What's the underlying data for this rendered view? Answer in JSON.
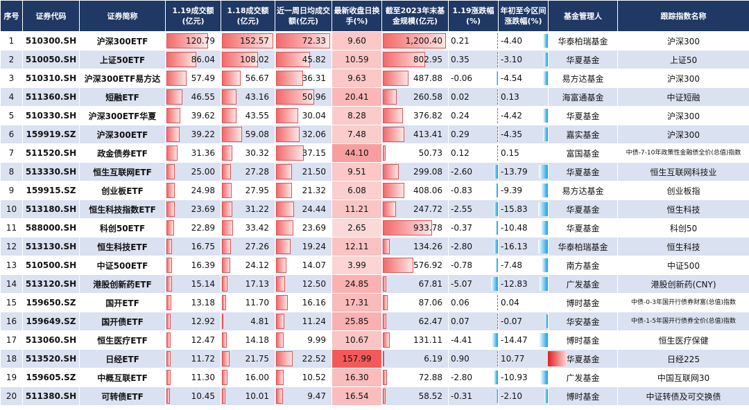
{
  "headers": {
    "idx": "序号",
    "code": "证券代码",
    "name": "证券简称",
    "amt119": "1.19成交额(亿元)",
    "amt118": "1.18成交额(亿元)",
    "avgweek": "近一周日均成交额(亿元)",
    "turnover": "最新收盘日换手(%)",
    "scale": "截至2023年末基金规模(亿元)",
    "chg119": "1.19涨跌幅(%)",
    "ytd": "年初至今区间涨跌幅(%)",
    "manager": "基金管理人",
    "index": "跟踪指数名称"
  },
  "colors": {
    "header_bg": "#1f3864",
    "alt_row": "#dae1f1",
    "bar_red": "#f26a6a",
    "bar_blue": "#27a8e6"
  },
  "rows": [
    {
      "idx": "1",
      "code": "510300.SH",
      "name": "沪深300ETF",
      "amt119": "120.79",
      "amt118": "152.57",
      "avgweek": "72.33",
      "turnover": "9.60",
      "scale": "1,200.40",
      "chg119": "0.21",
      "ytd": "-4.40",
      "manager": "华泰柏瑞基金",
      "index": "沪深300"
    },
    {
      "idx": "2",
      "code": "510050.SH",
      "name": "上证50ETF",
      "amt119": "86.04",
      "amt118": "108.02",
      "avgweek": "45.82",
      "turnover": "10.59",
      "scale": "802.95",
      "chg119": "0.35",
      "ytd": "-3.10",
      "manager": "华夏基金",
      "index": "上证50"
    },
    {
      "idx": "3",
      "code": "510310.SH",
      "name": "沪深300ETF易方达",
      "amt119": "57.49",
      "amt118": "56.67",
      "avgweek": "36.31",
      "turnover": "9.63",
      "scale": "487.88",
      "chg119": "-0.06",
      "ytd": "-4.54",
      "manager": "易方达基金",
      "index": "沪深300"
    },
    {
      "idx": "4",
      "code": "511360.SH",
      "name": "短融ETF",
      "amt119": "46.55",
      "amt118": "43.16",
      "avgweek": "50.96",
      "turnover": "20.41",
      "scale": "260.58",
      "chg119": "0.02",
      "ytd": "0.13",
      "manager": "海富通基金",
      "index": "中证短融"
    },
    {
      "idx": "5",
      "code": "510330.SH",
      "name": "沪深300ETF华夏",
      "amt119": "39.62",
      "amt118": "43.55",
      "avgweek": "30.04",
      "turnover": "8.28",
      "scale": "376.82",
      "chg119": "0.24",
      "ytd": "-4.42",
      "manager": "华夏基金",
      "index": "沪深300"
    },
    {
      "idx": "6",
      "code": "159919.SZ",
      "name": "沪深300ETF",
      "amt119": "39.22",
      "amt118": "59.08",
      "avgweek": "32.06",
      "turnover": "7.48",
      "scale": "413.41",
      "chg119": "0.29",
      "ytd": "-4.35",
      "manager": "嘉实基金",
      "index": "沪深300"
    },
    {
      "idx": "7",
      "code": "511520.SH",
      "name": "政金债券ETF",
      "amt119": "31.36",
      "amt118": "30.32",
      "avgweek": "37.15",
      "turnover": "44.10",
      "scale": "50.73",
      "chg119": "0.12",
      "ytd": "0.15",
      "manager": "富国基金",
      "index": "中债-7-10年政策性金融债全价(总值)指数"
    },
    {
      "idx": "8",
      "code": "513330.SH",
      "name": "恒生互联网ETF",
      "amt119": "25.00",
      "amt118": "27.28",
      "avgweek": "21.50",
      "turnover": "9.51",
      "scale": "299.08",
      "chg119": "-2.60",
      "ytd": "-13.79",
      "manager": "华夏基金",
      "index": "恒生互联网科技业"
    },
    {
      "idx": "9",
      "code": "159915.SZ",
      "name": "创业板ETF",
      "amt119": "24.98",
      "amt118": "27.95",
      "avgweek": "21.32",
      "turnover": "6.08",
      "scale": "408.06",
      "chg119": "-0.83",
      "ytd": "-9.39",
      "manager": "易方达基金",
      "index": "创业板指"
    },
    {
      "idx": "10",
      "code": "513180.SH",
      "name": "恒生科技指数ETF",
      "amt119": "23.69",
      "amt118": "31.22",
      "avgweek": "24.44",
      "turnover": "11.21",
      "scale": "247.72",
      "chg119": "-2.55",
      "ytd": "-15.83",
      "manager": "华夏基金",
      "index": "恒生科技"
    },
    {
      "idx": "11",
      "code": "588000.SH",
      "name": "科创50ETF",
      "amt119": "22.89",
      "amt118": "33.42",
      "avgweek": "23.69",
      "turnover": "2.65",
      "scale": "933.78",
      "chg119": "-0.37",
      "ytd": "-10.48",
      "manager": "华夏基金",
      "index": "科创50"
    },
    {
      "idx": "12",
      "code": "513130.SH",
      "name": "恒生科技ETF",
      "amt119": "16.75",
      "amt118": "27.26",
      "avgweek": "19.24",
      "turnover": "12.11",
      "scale": "134.26",
      "chg119": "-2.80",
      "ytd": "-16.13",
      "manager": "华泰柏瑞基金",
      "index": "恒生科技"
    },
    {
      "idx": "13",
      "code": "510500.SH",
      "name": "中证500ETF",
      "amt119": "16.39",
      "amt118": "24.12",
      "avgweek": "14.07",
      "turnover": "3.99",
      "scale": "576.92",
      "chg119": "-0.78",
      "ytd": "-7.48",
      "manager": "南方基金",
      "index": "中证500"
    },
    {
      "idx": "14",
      "code": "513120.SH",
      "name": "港股创新药ETF",
      "amt119": "15.14",
      "amt118": "17.13",
      "avgweek": "12.50",
      "turnover": "24.85",
      "scale": "67.81",
      "chg119": "-5.07",
      "ytd": "-12.83",
      "manager": "广发基金",
      "index": "港股创新药(CNY)"
    },
    {
      "idx": "15",
      "code": "159650.SZ",
      "name": "国开ETF",
      "amt119": "13.18",
      "amt118": "11.70",
      "avgweek": "16.16",
      "turnover": "17.31",
      "scale": "87.06",
      "chg119": "0.06",
      "ytd": "0.04",
      "manager": "博时基金",
      "index": "中债-0-3年国开行债券财富(总值)指数"
    },
    {
      "idx": "16",
      "code": "159649.SZ",
      "name": "国开债ETF",
      "amt119": "12.92",
      "amt118": "4.81",
      "avgweek": "11.24",
      "turnover": "25.85",
      "scale": "62.47",
      "chg119": "0.07",
      "ytd": "-0.07",
      "manager": "华安基金",
      "index": "中债-1-5年国开行债券全价(总值)指数"
    },
    {
      "idx": "17",
      "code": "513060.SH",
      "name": "恒生医疗ETF",
      "amt119": "12.47",
      "amt118": "14.18",
      "avgweek": "9.99",
      "turnover": "10.67",
      "scale": "131.11",
      "chg119": "-4.41",
      "ytd": "-14.47",
      "manager": "博时基金",
      "index": "恒生医疗保健"
    },
    {
      "idx": "18",
      "code": "513520.SH",
      "name": "日经ETF",
      "amt119": "11.72",
      "amt118": "21.75",
      "avgweek": "22.52",
      "turnover": "157.99",
      "scale": "6.19",
      "chg119": "0.90",
      "ytd": "10.77",
      "manager": "华夏基金",
      "index": "日经225"
    },
    {
      "idx": "19",
      "code": "159605.SZ",
      "name": "中概互联ETF",
      "amt119": "11.30",
      "amt118": "16.00",
      "avgweek": "10.52",
      "turnover": "16.30",
      "scale": "72.88",
      "chg119": "-2.80",
      "ytd": "-10.93",
      "manager": "广发基金",
      "index": "中国互联网30"
    },
    {
      "idx": "20",
      "code": "511380.SH",
      "name": "可转债ETF",
      "amt119": "10.45",
      "amt118": "10.01",
      "avgweek": "9.47",
      "turnover": "16.54",
      "scale": "58.52",
      "chg119": "-0.31",
      "ytd": "-2.10",
      "manager": "博时基金",
      "index": "中证转债及可交换债"
    }
  ]
}
